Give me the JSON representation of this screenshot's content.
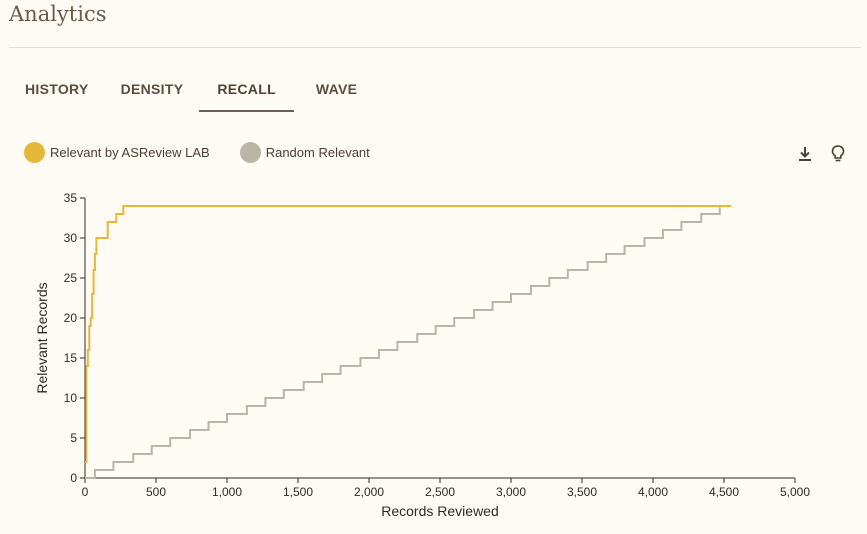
{
  "page": {
    "title": "Analytics"
  },
  "tabs": [
    {
      "label": "HISTORY",
      "active": false
    },
    {
      "label": "DENSITY",
      "active": false
    },
    {
      "label": "RECALL",
      "active": true
    },
    {
      "label": "WAVE",
      "active": false
    }
  ],
  "toolbar": {
    "download_icon": "download-icon",
    "tip_icon": "lightbulb-icon"
  },
  "colors": {
    "asreview": "#e6b83a",
    "random": "#b9b6a6",
    "tab_indicator": "#6e5e51"
  },
  "chart_data": {
    "type": "line",
    "xlabel": "Records Reviewed",
    "ylabel": "Relevant Records",
    "xlim": [
      0,
      5000
    ],
    "ylim": [
      0,
      35
    ],
    "xticks": [
      0,
      500,
      1000,
      1500,
      2000,
      2500,
      3000,
      3500,
      4000,
      4500,
      5000
    ],
    "xtick_labels": [
      "0",
      "500",
      "1,000",
      "1,500",
      "2,000",
      "2,500",
      "3,000",
      "3,500",
      "4,000",
      "4,500",
      "5,000"
    ],
    "yticks": [
      0,
      5,
      10,
      15,
      20,
      25,
      30,
      35
    ],
    "ytick_labels": [
      "0",
      "5",
      "10",
      "15",
      "20",
      "25",
      "30",
      "35"
    ],
    "grid": false,
    "legend": "top-left",
    "series": [
      {
        "name": "Relevant by ASReview LAB",
        "color": "#e6b83a",
        "step": true,
        "x": [
          0,
          10,
          20,
          30,
          40,
          50,
          60,
          70,
          80,
          100,
          160,
          220,
          270,
          4550
        ],
        "y": [
          2,
          14,
          16,
          19,
          20,
          23,
          26,
          28,
          30,
          30,
          32,
          33,
          34,
          34
        ]
      },
      {
        "name": "Random Relevant",
        "color": "#b9b6a6",
        "step": true,
        "x": [
          0,
          70,
          200,
          340,
          470,
          600,
          740,
          870,
          1000,
          1140,
          1270,
          1400,
          1540,
          1670,
          1800,
          1940,
          2070,
          2200,
          2340,
          2470,
          2600,
          2740,
          2870,
          3000,
          3140,
          3270,
          3400,
          3540,
          3670,
          3800,
          3940,
          4070,
          4200,
          4340,
          4470,
          4550
        ],
        "y": [
          0,
          1,
          2,
          3,
          4,
          5,
          6,
          7,
          8,
          9,
          10,
          11,
          12,
          13,
          14,
          15,
          16,
          17,
          18,
          19,
          20,
          21,
          22,
          23,
          24,
          25,
          26,
          27,
          28,
          29,
          30,
          31,
          32,
          33,
          34,
          34
        ]
      }
    ]
  }
}
